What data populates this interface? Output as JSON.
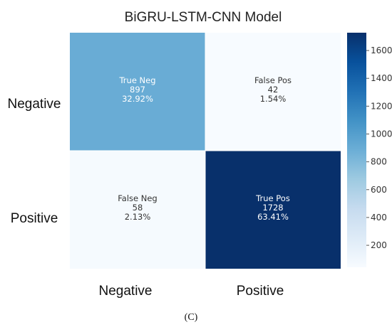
{
  "chart_data": {
    "type": "heatmap",
    "title": "BiGRU-LSTM-CNN Model",
    "row_labels": [
      "Negative",
      "Positive"
    ],
    "col_labels": [
      "Negative",
      "Positive"
    ],
    "cells": [
      [
        {
          "name": "True Neg",
          "count": "897",
          "percent": "32.92%",
          "value": 897
        },
        {
          "name": "False Pos",
          "count": "42",
          "percent": "1.54%",
          "value": 42
        }
      ],
      [
        {
          "name": "False Neg",
          "count": "58",
          "percent": "2.13%",
          "value": 58
        },
        {
          "name": "True Pos",
          "count": "1728",
          "percent": "63.41%",
          "value": 1728
        }
      ]
    ],
    "colorbar": {
      "range": [
        42,
        1728
      ],
      "ticks": [
        200,
        400,
        600,
        800,
        1000,
        1200,
        1400,
        1600
      ],
      "colormap": "Blues"
    }
  },
  "panel_label": "(C)"
}
